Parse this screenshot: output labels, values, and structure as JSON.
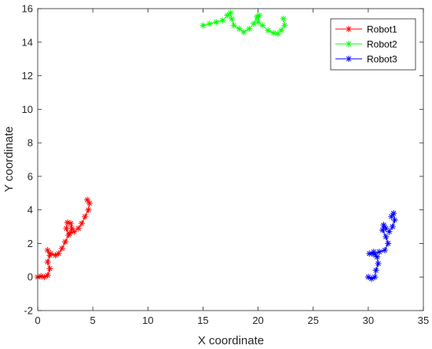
{
  "chart_data": {
    "type": "line",
    "xlabel": "X coordinate",
    "ylabel": "Y coordinate",
    "xlim": [
      0,
      35
    ],
    "ylim": [
      -2,
      16
    ],
    "xticks": [
      0,
      5,
      10,
      15,
      20,
      25,
      30,
      35
    ],
    "yticks": [
      -2,
      0,
      2,
      4,
      6,
      8,
      10,
      12,
      14,
      16
    ],
    "grid": false,
    "legend_position": "top-right",
    "marker": "asterisk",
    "series": [
      {
        "name": "Robot1",
        "color": "#ff0000",
        "points": [
          [
            0.0,
            0.0
          ],
          [
            0.3,
            0.05
          ],
          [
            0.6,
            0.0
          ],
          [
            0.9,
            0.1
          ],
          [
            1.1,
            0.5
          ],
          [
            0.9,
            0.9
          ],
          [
            1.1,
            1.3
          ],
          [
            0.9,
            1.6
          ],
          [
            1.2,
            1.4
          ],
          [
            1.6,
            1.3
          ],
          [
            1.9,
            1.4
          ],
          [
            2.2,
            1.7
          ],
          [
            2.5,
            2.1
          ],
          [
            2.8,
            2.5
          ],
          [
            2.6,
            2.9
          ],
          [
            2.7,
            3.25
          ],
          [
            3.0,
            3.2
          ],
          [
            3.1,
            2.9
          ],
          [
            2.9,
            2.6
          ],
          [
            3.3,
            2.7
          ],
          [
            3.7,
            2.9
          ],
          [
            4.0,
            3.2
          ],
          [
            4.3,
            3.6
          ],
          [
            4.6,
            4.0
          ],
          [
            4.7,
            4.4
          ],
          [
            4.5,
            4.6
          ]
        ]
      },
      {
        "name": "Robot2",
        "color": "#00ff00",
        "points": [
          [
            15.0,
            15.0
          ],
          [
            15.6,
            15.1
          ],
          [
            16.2,
            15.2
          ],
          [
            16.8,
            15.3
          ],
          [
            17.2,
            15.6
          ],
          [
            17.5,
            15.75
          ],
          [
            17.6,
            15.4
          ],
          [
            17.8,
            15.0
          ],
          [
            18.3,
            14.8
          ],
          [
            18.7,
            14.6
          ],
          [
            19.2,
            14.8
          ],
          [
            19.6,
            15.1
          ],
          [
            19.9,
            15.5
          ],
          [
            20.1,
            15.6
          ],
          [
            20.0,
            15.2
          ],
          [
            20.4,
            15.0
          ],
          [
            20.9,
            14.7
          ],
          [
            21.4,
            14.55
          ],
          [
            21.8,
            14.5
          ],
          [
            22.1,
            14.7
          ],
          [
            22.4,
            15.0
          ],
          [
            22.3,
            15.4
          ]
        ]
      },
      {
        "name": "Robot3",
        "color": "#0000ff",
        "points": [
          [
            30.0,
            0.0
          ],
          [
            30.3,
            -0.1
          ],
          [
            30.6,
            0.0
          ],
          [
            30.7,
            0.4
          ],
          [
            30.9,
            0.8
          ],
          [
            30.8,
            1.2
          ],
          [
            30.5,
            1.5
          ],
          [
            30.1,
            1.4
          ],
          [
            30.5,
            1.35
          ],
          [
            31.0,
            1.5
          ],
          [
            31.5,
            1.6
          ],
          [
            31.8,
            2.0
          ],
          [
            31.6,
            2.4
          ],
          [
            31.3,
            2.8
          ],
          [
            31.4,
            3.1
          ],
          [
            31.6,
            2.9
          ],
          [
            31.9,
            2.7
          ],
          [
            32.2,
            3.0
          ],
          [
            32.4,
            3.4
          ],
          [
            32.3,
            3.8
          ],
          [
            32.1,
            3.6
          ]
        ]
      }
    ]
  }
}
